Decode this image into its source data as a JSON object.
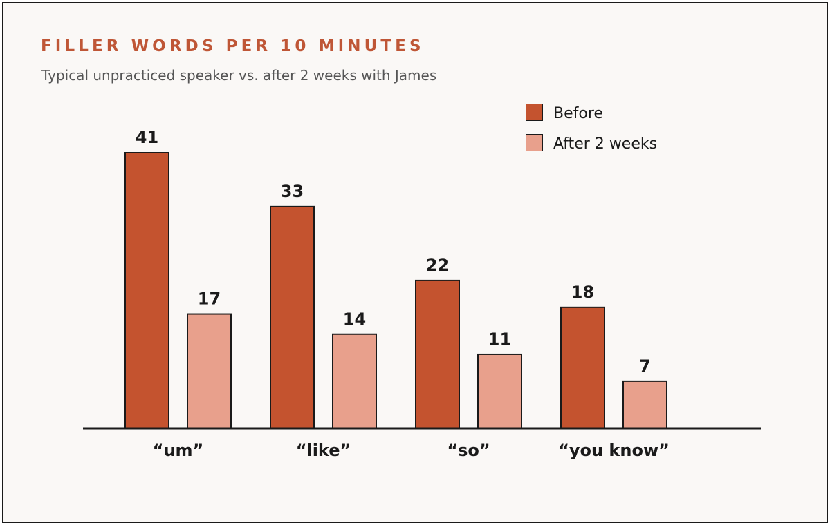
{
  "chart_data": {
    "type": "bar",
    "title": "FILLER WORDS PER 10 MINUTES",
    "subtitle": "Typical unpracticed speaker vs. after 2 weeks with James",
    "categories": [
      "“um”",
      "“like”",
      "“so”",
      "“you know”"
    ],
    "series": [
      {
        "name": "Before",
        "values": [
          41,
          33,
          22,
          18
        ],
        "color": "#c4532f"
      },
      {
        "name": "After 2 weeks",
        "values": [
          17,
          14,
          11,
          7
        ],
        "color": "#e8a08c"
      }
    ],
    "xlabel": "",
    "ylabel": "",
    "ylim": [
      0,
      41
    ],
    "grid": false,
    "legend_position": "top-right",
    "data_labels": true
  },
  "colors": {
    "title": "#bf5636",
    "axis": "#1a1a1a",
    "label": "#1a1a1a",
    "background": "#faf8f6"
  }
}
